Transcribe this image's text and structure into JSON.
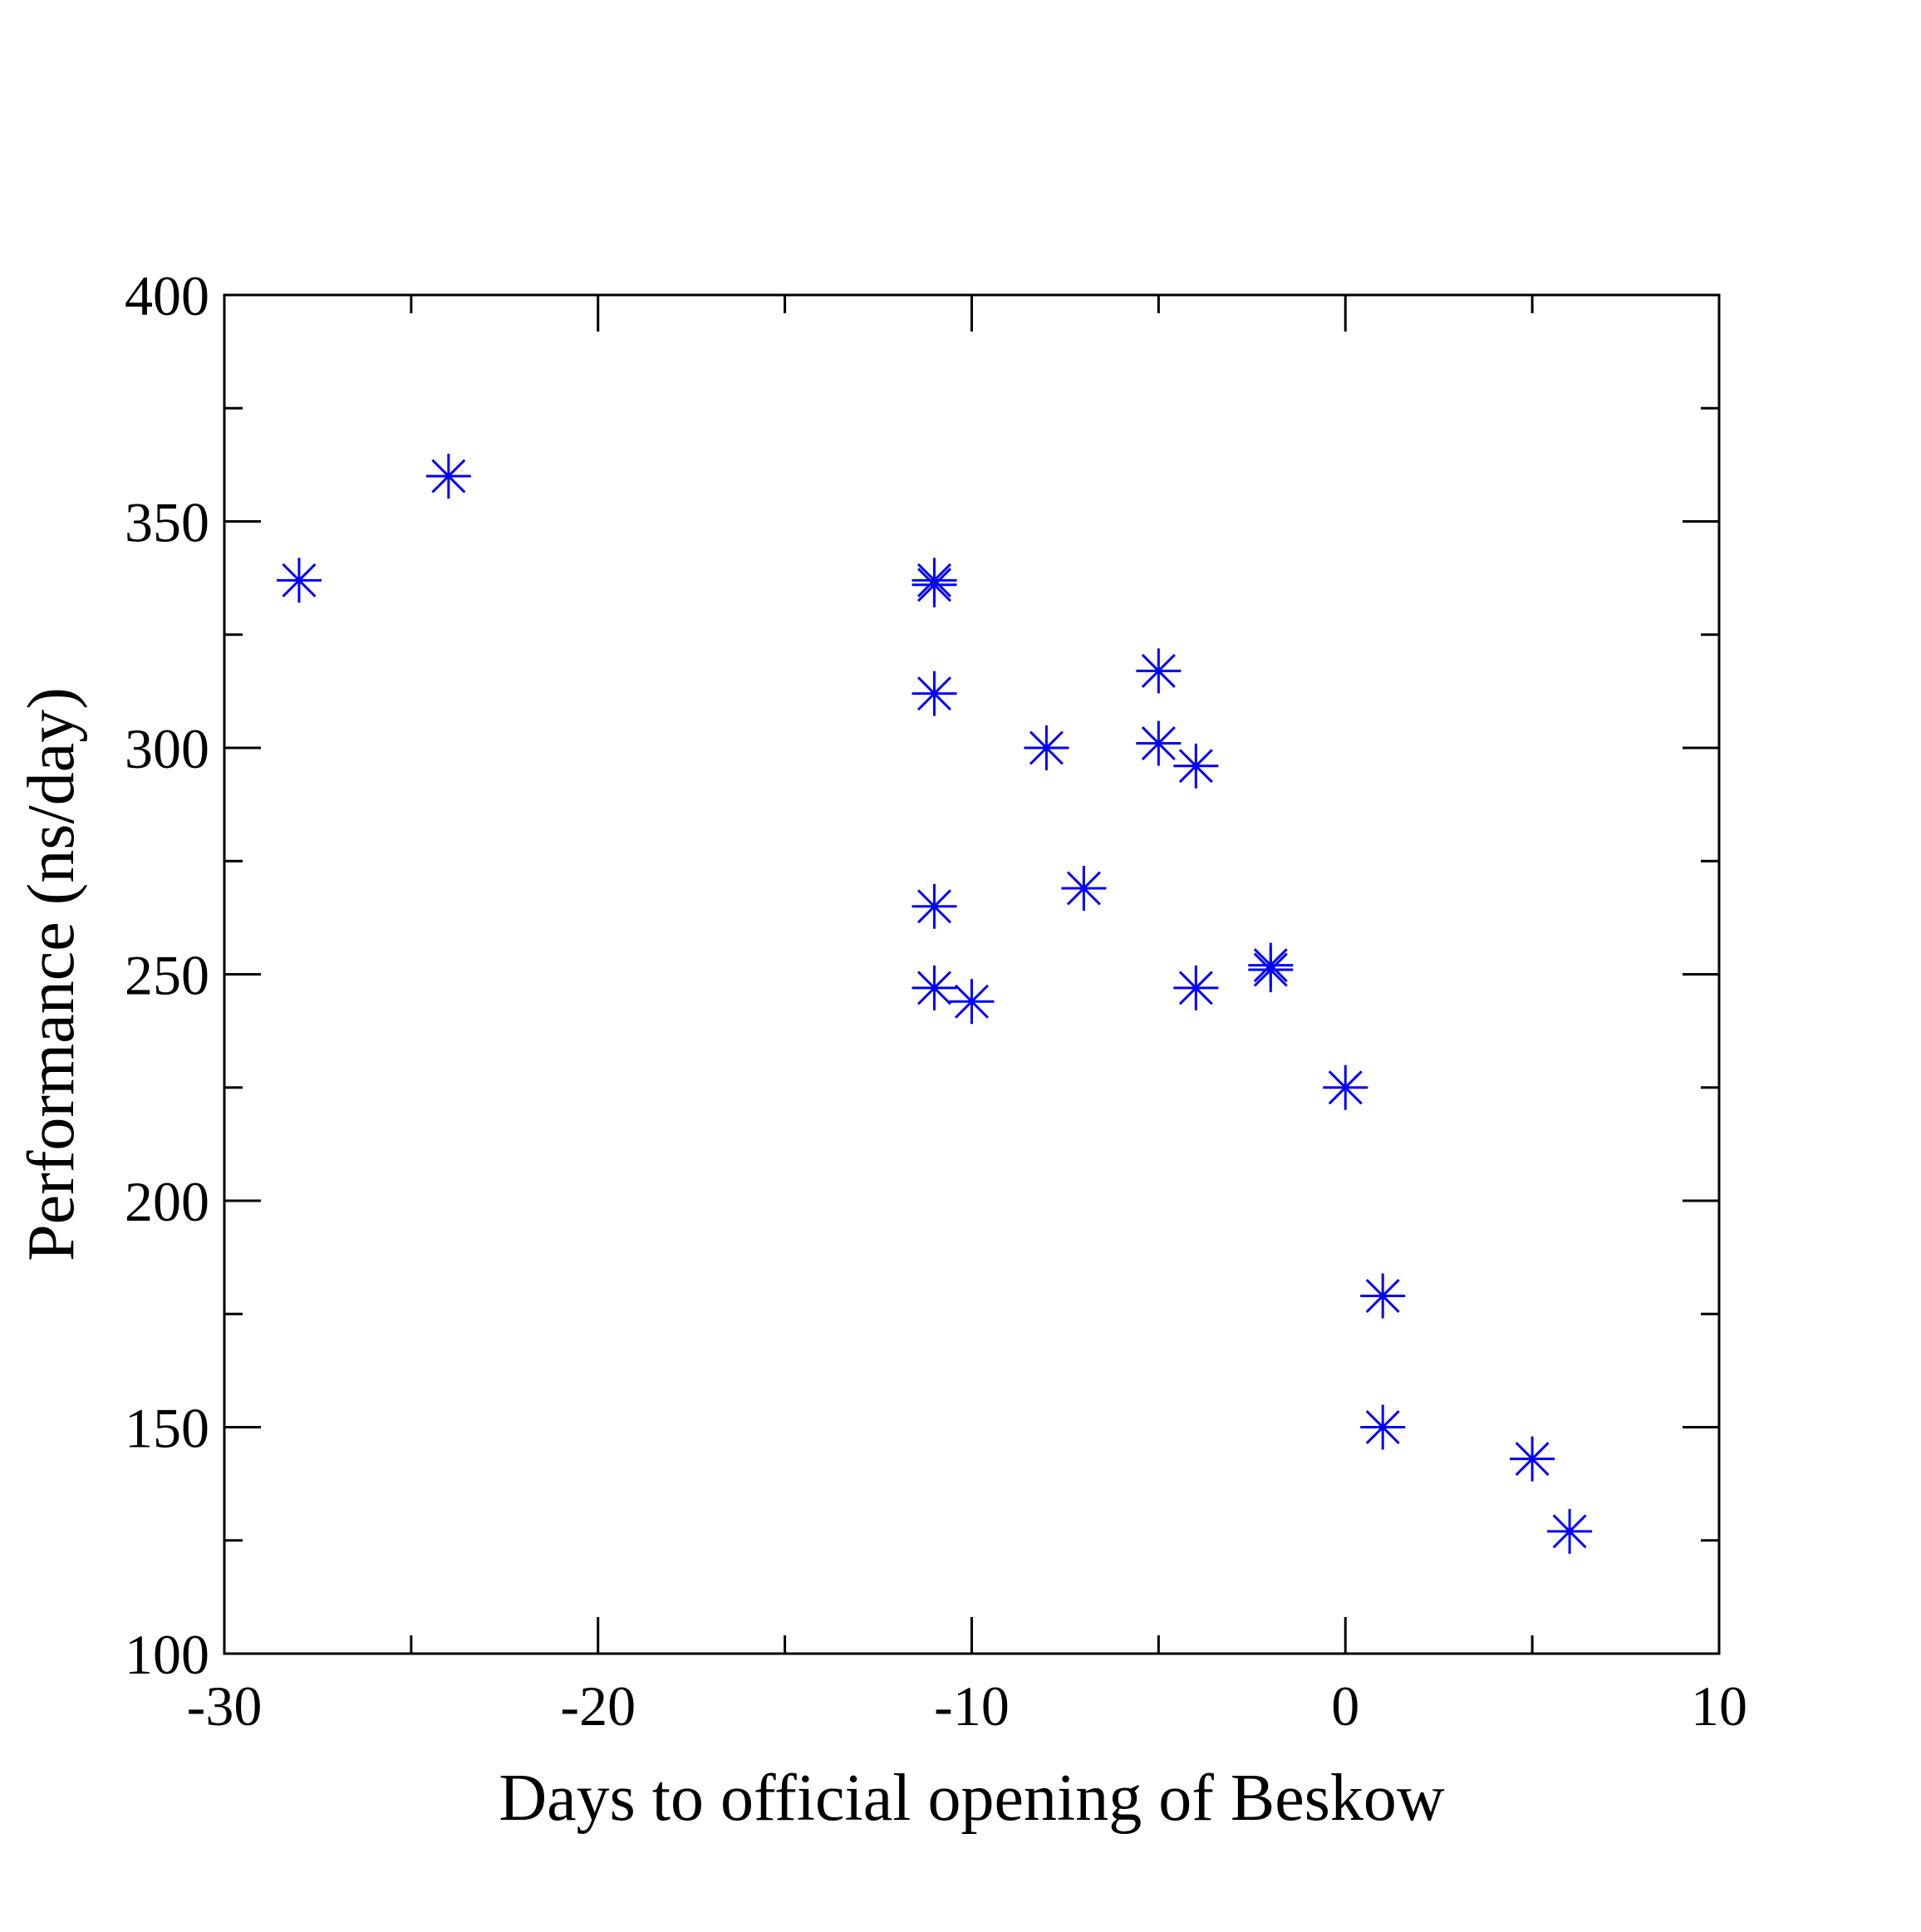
{
  "chart_data": {
    "type": "scatter",
    "xlabel": "Days to official opening of Beskow",
    "ylabel": "Performance (ns/day)",
    "xlim": [
      -30,
      10
    ],
    "ylim": [
      100,
      400
    ],
    "x_ticks": [
      -30,
      -20,
      -10,
      0,
      10
    ],
    "y_ticks": [
      100,
      150,
      200,
      250,
      300,
      350,
      400
    ],
    "x_tick_labels": [
      "-30",
      "-20",
      "-10",
      "0",
      "10"
    ],
    "y_tick_labels": [
      "100",
      "150",
      "200",
      "250",
      "300",
      "350",
      "400"
    ],
    "grid": false,
    "legend": "none",
    "marker": "asterisk",
    "marker_color": "#0000ff",
    "series": [
      {
        "points": [
          {
            "x": -28,
            "y": 337
          },
          {
            "x": -24,
            "y": 360
          },
          {
            "x": -11,
            "y": 337
          },
          {
            "x": -11,
            "y": 336
          },
          {
            "x": -11,
            "y": 312
          },
          {
            "x": -11,
            "y": 265
          },
          {
            "x": -11,
            "y": 247
          },
          {
            "x": -10,
            "y": 244
          },
          {
            "x": -8,
            "y": 300
          },
          {
            "x": -7,
            "y": 269
          },
          {
            "x": -5,
            "y": 317
          },
          {
            "x": -5,
            "y": 301
          },
          {
            "x": -4,
            "y": 296
          },
          {
            "x": -4,
            "y": 247
          },
          {
            "x": -2,
            "y": 252
          },
          {
            "x": -2,
            "y": 251
          },
          {
            "x": 0,
            "y": 225
          },
          {
            "x": 1,
            "y": 179
          },
          {
            "x": 1,
            "y": 150
          },
          {
            "x": 5,
            "y": 143
          },
          {
            "x": 6,
            "y": 127
          }
        ]
      }
    ]
  }
}
